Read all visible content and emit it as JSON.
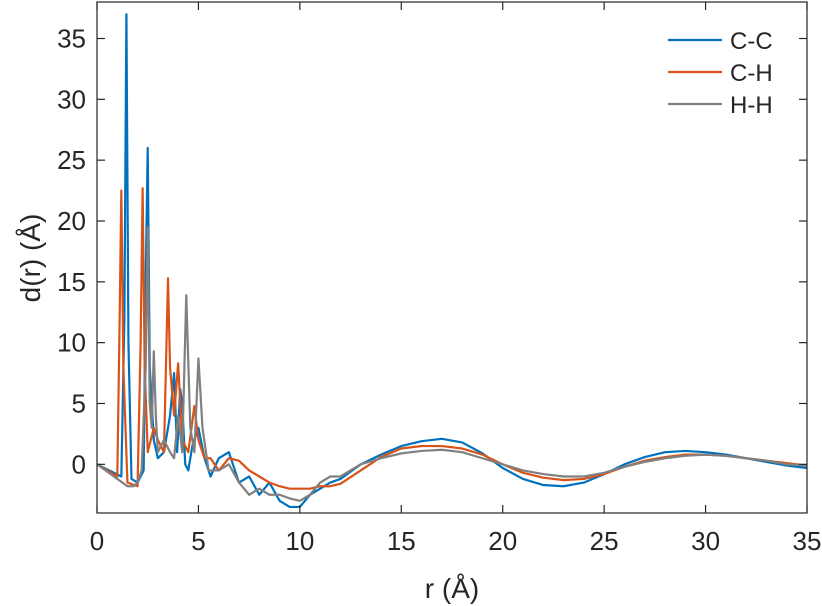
{
  "chart_data": {
    "type": "line",
    "title": "",
    "xlabel": "r (Å)",
    "ylabel": "d(r) (Å)",
    "xlim": [
      0,
      35
    ],
    "ylim": [
      -4,
      38
    ],
    "xticks": [
      0,
      5,
      10,
      15,
      20,
      25,
      30,
      35
    ],
    "yticks": [
      0,
      5,
      10,
      15,
      20,
      25,
      30,
      35
    ],
    "grid": false,
    "legend_position": "top-right",
    "series": [
      {
        "name": "C-C",
        "color": "#0072BD",
        "x": [
          0,
          1.2,
          1.35,
          1.45,
          1.55,
          1.7,
          2.0,
          2.3,
          2.4,
          2.5,
          2.6,
          2.8,
          3.0,
          3.3,
          3.6,
          3.8,
          3.95,
          4.1,
          4.2,
          4.35,
          4.5,
          4.7,
          5.0,
          5.3,
          5.6,
          6.0,
          6.5,
          7.0,
          7.5,
          8.0,
          8.5,
          9.0,
          9.5,
          10.0,
          10.5,
          11.0,
          11.5,
          12.0,
          13.0,
          14.0,
          15.0,
          16.0,
          17.0,
          18.0,
          19.0,
          20.0,
          21.0,
          22.0,
          23.0,
          24.0,
          25.0,
          26.0,
          27.0,
          28.0,
          29.0,
          30.0,
          31.0,
          32.0,
          33.0,
          34.0,
          35.0
        ],
        "y": [
          0,
          -1.0,
          12,
          37,
          10,
          -1.2,
          -1.5,
          -0.5,
          15,
          26,
          8,
          2,
          0.5,
          1,
          4,
          7.5,
          1,
          6.2,
          5,
          0,
          -0.5,
          1.5,
          3,
          0.5,
          -1.0,
          0.5,
          1,
          -1.5,
          -1.0,
          -2.5,
          -1.5,
          -3.0,
          -3.5,
          -3.5,
          -2.5,
          -2.0,
          -1.5,
          -1.2,
          0.0,
          0.8,
          1.5,
          1.9,
          2.1,
          1.8,
          0.9,
          -0.3,
          -1.2,
          -1.7,
          -1.8,
          -1.5,
          -0.8,
          0.0,
          0.6,
          1.0,
          1.1,
          1.0,
          0.8,
          0.5,
          0.2,
          -0.1,
          -0.3
        ]
      },
      {
        "name": "C-H",
        "color": "#D95319",
        "x": [
          0,
          1.0,
          1.1,
          1.2,
          1.3,
          1.5,
          2.0,
          2.15,
          2.25,
          2.35,
          2.5,
          2.8,
          3.0,
          3.3,
          3.5,
          3.6,
          3.8,
          4.0,
          4.2,
          4.5,
          4.8,
          5.0,
          5.3,
          5.6,
          6.0,
          6.5,
          7.0,
          7.5,
          8.0,
          8.5,
          9.0,
          9.5,
          10.0,
          10.5,
          11.0,
          11.5,
          12.0,
          13.0,
          14.0,
          15.0,
          16.0,
          17.0,
          18.0,
          19.0,
          20.0,
          21.0,
          22.0,
          23.0,
          24.0,
          25.0,
          26.0,
          27.0,
          28.0,
          29.0,
          30.0,
          31.0,
          32.0,
          33.0,
          34.0,
          35.0
        ],
        "y": [
          0,
          -1.0,
          10,
          22.5,
          8,
          -1.5,
          -1.8,
          10,
          22.7,
          8,
          1,
          3,
          2,
          1,
          15.3,
          8,
          4,
          8.3,
          2,
          1,
          4.8,
          2,
          0.5,
          0.5,
          -0.5,
          0.5,
          0.3,
          -0.5,
          -1.0,
          -1.5,
          -1.8,
          -2.0,
          -2.0,
          -2.0,
          -1.8,
          -1.8,
          -1.6,
          -0.5,
          0.6,
          1.3,
          1.5,
          1.5,
          1.3,
          0.8,
          0.0,
          -0.7,
          -1.1,
          -1.3,
          -1.2,
          -0.8,
          -0.2,
          0.3,
          0.6,
          0.8,
          0.8,
          0.7,
          0.5,
          0.3,
          0.1,
          -0.1
        ]
      },
      {
        "name": "H-H",
        "color": "#808080",
        "x": [
          0,
          1.5,
          1.8,
          2.0,
          2.2,
          2.4,
          2.5,
          2.6,
          2.7,
          2.8,
          2.9,
          3.0,
          3.3,
          3.6,
          3.8,
          4.0,
          4.2,
          4.4,
          4.6,
          4.8,
          5.0,
          5.2,
          5.5,
          6.0,
          6.5,
          7.0,
          7.5,
          8.0,
          8.5,
          9.0,
          9.5,
          10.0,
          10.5,
          11.0,
          11.5,
          12.0,
          13.0,
          14.0,
          15.0,
          16.0,
          17.0,
          18.0,
          19.0,
          20.0,
          21.0,
          22.0,
          23.0,
          24.0,
          25.0,
          26.0,
          27.0,
          28.0,
          29.0,
          30.0,
          31.0,
          32.0,
          33.0,
          34.0,
          35.0
        ],
        "y": [
          0,
          -1.8,
          -1.8,
          -1.5,
          -0.5,
          8,
          19.5,
          5,
          3,
          9.3,
          4,
          1,
          2,
          1,
          0.5,
          4,
          1,
          13.9,
          3,
          1,
          8.7,
          3,
          -0.5,
          -0.5,
          0,
          -1.5,
          -2.5,
          -2.0,
          -2.5,
          -2.5,
          -2.8,
          -3.0,
          -2.5,
          -1.5,
          -1.0,
          -1.0,
          0.0,
          0.5,
          0.9,
          1.1,
          1.2,
          1.0,
          0.5,
          0.0,
          -0.5,
          -0.8,
          -1.0,
          -1.0,
          -0.7,
          -0.2,
          0.2,
          0.5,
          0.7,
          0.8,
          0.7,
          0.5,
          0.3,
          0.0,
          -0.1
        ]
      }
    ]
  }
}
